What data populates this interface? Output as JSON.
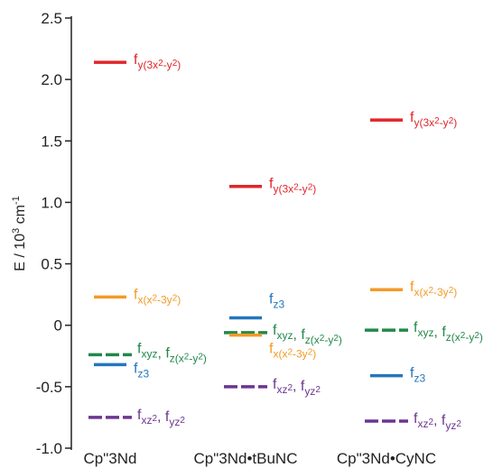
{
  "chart_data": {
    "type": "scatter",
    "title": "",
    "xlabel": "",
    "ylabel": "E / 10³ cm⁻¹",
    "ylabel_parts": {
      "main": "E / 10",
      "exp": "3",
      "unit": " cm",
      "unit_exp": "-1"
    },
    "ylim": [
      -1.0,
      2.5
    ],
    "yticks": [
      "2.5",
      "2.0",
      "1.5",
      "1.0",
      "0.5",
      "0",
      "-0.5",
      "-1.0"
    ],
    "categories": [
      "Cp\"3Nd",
      "Cp\"3Nd•tBuNC",
      "Cp\"3Nd•CyNC"
    ],
    "colors": {
      "red": "#e0262a",
      "orange": "#f39a27",
      "blue": "#2476bd",
      "green": "#21884a",
      "purple": "#6c3591"
    },
    "levels": [
      {
        "category": 0,
        "y": 2.14,
        "style": "solid",
        "color": "#e0262a",
        "label": "fy(3x2-y2)"
      },
      {
        "category": 0,
        "y": 0.23,
        "style": "solid",
        "color": "#f39a27",
        "label": "fx(x2-3y2)"
      },
      {
        "category": 0,
        "y": -0.24,
        "style": "dashed",
        "color": "#21884a",
        "label": "fxyz, fz(x2-y2)"
      },
      {
        "category": 0,
        "y": -0.32,
        "style": "solid",
        "color": "#2476bd",
        "label": "fz3"
      },
      {
        "category": 0,
        "y": -0.75,
        "style": "dashed",
        "color": "#6c3591",
        "label": "fxz2, fyz2"
      },
      {
        "category": 1,
        "y": 1.13,
        "style": "solid",
        "color": "#e0262a",
        "label": "fy(3x2-y2)"
      },
      {
        "category": 1,
        "y": 0.06,
        "style": "solid",
        "color": "#2476bd",
        "label": "fz3"
      },
      {
        "category": 1,
        "y": -0.06,
        "style": "dashed",
        "color": "#21884a",
        "label": "fxyz, fz(x2-y2)"
      },
      {
        "category": 1,
        "y": -0.08,
        "style": "solid",
        "color": "#f39a27",
        "label": "fx(x2-3y2)"
      },
      {
        "category": 1,
        "y": -0.5,
        "style": "dashed",
        "color": "#6c3591",
        "label": "fxz2, fyz2"
      },
      {
        "category": 2,
        "y": 1.67,
        "style": "solid",
        "color": "#e0262a",
        "label": "fy(3x2-y2)"
      },
      {
        "category": 2,
        "y": 0.29,
        "style": "solid",
        "color": "#f39a27",
        "label": "fx(x2-3y2)"
      },
      {
        "category": 2,
        "y": -0.04,
        "style": "dashed",
        "color": "#21884a",
        "label": "fxyz, fz(x2-y2)"
      },
      {
        "category": 2,
        "y": -0.41,
        "style": "solid",
        "color": "#2476bd",
        "label": "fz3"
      },
      {
        "category": 2,
        "y": -0.78,
        "style": "dashed",
        "color": "#6c3591",
        "label": "fxz2, fyz2"
      }
    ],
    "grid": false,
    "legend": "none"
  }
}
